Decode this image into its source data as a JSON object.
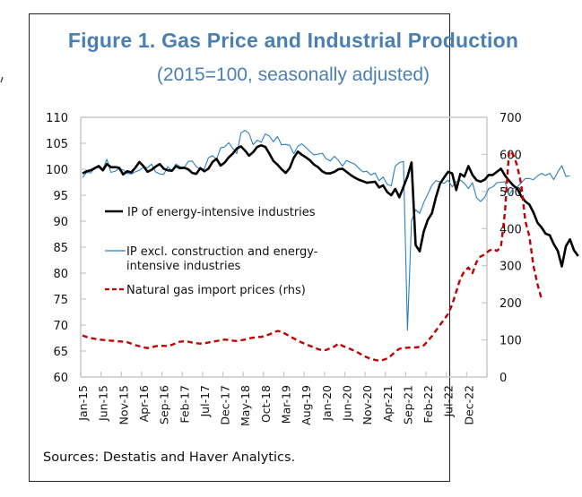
{
  "figure": {
    "title": "Figure 1. Gas Price and Industrial Production",
    "subtitle": "(2015=100, seasonally adjusted)",
    "source": "Sources: Destatis and Haver Analytics."
  },
  "chart_data": {
    "type": "line",
    "title": "Figure 1. Gas Price and Industrial Production",
    "subtitle": "(2015=100, seasonally adjusted)",
    "xlabel": "",
    "ylabel": "",
    "y2label": "",
    "ylim": [
      60,
      110
    ],
    "y2lim": [
      0,
      700
    ],
    "yticks": [
      60,
      65,
      70,
      75,
      80,
      85,
      90,
      95,
      100,
      105,
      110
    ],
    "y2ticks": [
      0,
      100,
      200,
      300,
      400,
      500,
      600,
      700
    ],
    "x_start": "Jan-15",
    "x_frequency": "monthly",
    "xtick_labels": [
      "Jan-15",
      "Jun-15",
      "Nov-15",
      "Apr-16",
      "Sep-16",
      "Feb-17",
      "Jul-17",
      "Dec-17",
      "May-18",
      "Oct-18",
      "Mar-19",
      "Aug-19",
      "Jan-20",
      "Jun-20",
      "Nov-20",
      "Apr-21",
      "Sep-21",
      "Feb-22",
      "Jul-22",
      "Dec-22"
    ],
    "xtick_step_months": 5,
    "grid": false,
    "legend_position": "left-middle",
    "series": [
      {
        "name": "IP of energy-intensive industries",
        "axis": "left",
        "color": "#000000",
        "style": "solid-thick",
        "values": [
          99.2,
          99.6,
          99.8,
          100.2,
          100.6,
          99.8,
          101.0,
          100.4,
          100.4,
          100.3,
          99.0,
          99.6,
          99.4,
          100.3,
          101.4,
          100.6,
          99.5,
          99.9,
          100.5,
          101.0,
          100.1,
          99.8,
          99.7,
          100.6,
          100.2,
          100.3,
          100.0,
          99.3,
          99.1,
          100.2,
          99.6,
          100.1,
          101.4,
          102.0,
          100.7,
          101.3,
          102.3,
          103.0,
          104.0,
          104.4,
          103.6,
          102.6,
          103.3,
          104.3,
          104.6,
          104.3,
          103.0,
          101.6,
          100.9,
          100.0,
          99.3,
          100.2,
          102.2,
          103.4,
          102.8,
          102.3,
          101.7,
          100.9,
          100.4,
          99.6,
          99.2,
          99.2,
          99.5,
          100.0,
          100.1,
          99.5,
          98.9,
          98.4,
          98.0,
          97.7,
          97.4,
          97.5,
          97.6,
          96.5,
          96.9,
          95.6,
          95.0,
          96.2,
          94.6,
          96.6,
          98.6,
          101.3,
          85.4,
          84.2,
          88.0,
          90.3,
          91.5,
          94.6,
          97.2,
          98.4,
          99.5,
          99.2,
          96.0,
          99.1,
          98.6,
          100.6,
          98.9,
          97.9,
          97.6,
          98.0,
          98.9,
          98.9,
          99.5,
          100.1,
          98.8,
          97.8,
          96.9,
          96.3,
          94.8,
          93.8,
          93.2,
          91.7,
          89.7,
          88.8,
          87.6,
          87.3,
          85.6,
          84.3,
          81.3,
          85.2,
          86.5,
          84.4,
          83.3
        ]
      },
      {
        "name": "IP excl. construction and energy-intensive industries",
        "axis": "left",
        "color": "#2a7fc4",
        "style": "solid-thin",
        "values": [
          98.4,
          99.4,
          99.3,
          100.2,
          100.8,
          100.0,
          101.9,
          99.4,
          99.6,
          100.1,
          99.9,
          99.2,
          99.1,
          99.5,
          99.8,
          100.4,
          100.3,
          101.0,
          99.5,
          99.1,
          99.0,
          100.5,
          99.7,
          101.0,
          100.5,
          100.2,
          101.5,
          101.6,
          100.5,
          100.0,
          100.1,
          102.2,
          102.6,
          101.9,
          104.1,
          104.3,
          105.1,
          104.0,
          103.0,
          107.0,
          107.5,
          106.9,
          104.7,
          105.6,
          105.2,
          106.8,
          106.4,
          105.3,
          106.3,
          104.7,
          104.8,
          104.6,
          103.0,
          104.4,
          104.9,
          104.2,
          103.4,
          102.8,
          102.9,
          103.1,
          102.0,
          101.6,
          102.5,
          101.7,
          100.6,
          101.7,
          101.3,
          101.0,
          100.2,
          99.5,
          99.6,
          98.9,
          99.3,
          97.8,
          98.5,
          97.1,
          96.8,
          100.6,
          101.3,
          101.5,
          69.0,
          90.1,
          92.2,
          91.5,
          93.6,
          95.2,
          96.9,
          97.8,
          97.6,
          97.3,
          97.9,
          96.6,
          97.6,
          97.9,
          97.3,
          96.3,
          97.4,
          94.5,
          93.8,
          94.6,
          96.3,
          96.6,
          97.4,
          97.5,
          97.6,
          95.0,
          96.3,
          96.6,
          97.4,
          98.2,
          98.2,
          98.0,
          98.7,
          99.2,
          98.8,
          99.2,
          98.0,
          99.5,
          100.7,
          98.6,
          98.7
        ]
      },
      {
        "name": "Natural gas import prices (rhs)",
        "axis": "right",
        "color": "#c00000",
        "style": "dashed",
        "values": [
          112,
          108,
          105,
          103,
          101,
          100,
          99,
          98,
          97,
          96,
          95,
          94,
          90,
          86,
          83,
          80,
          78,
          80,
          83,
          84,
          84,
          83,
          87,
          91,
          95,
          96,
          95,
          93,
          91,
          90,
          91,
          93,
          95,
          97,
          99,
          101,
          100,
          98,
          97,
          99,
          101,
          104,
          106,
          108,
          108,
          111,
          115,
          120,
          124,
          122,
          116,
          110,
          104,
          98,
          93,
          88,
          84,
          80,
          75,
          72,
          73,
          78,
          82,
          90,
          84,
          80,
          75,
          70,
          65,
          58,
          53,
          49,
          46,
          44,
          46,
          50,
          58,
          68,
          76,
          78,
          79,
          80,
          80,
          81,
          85,
          97,
          110,
          125,
          140,
          155,
          170,
          195,
          230,
          265,
          285,
          295,
          280,
          310,
          325,
          330,
          340,
          345,
          340,
          350,
          445,
          610,
          600,
          570,
          520,
          420,
          380,
          300,
          250,
          210
        ]
      }
    ]
  }
}
